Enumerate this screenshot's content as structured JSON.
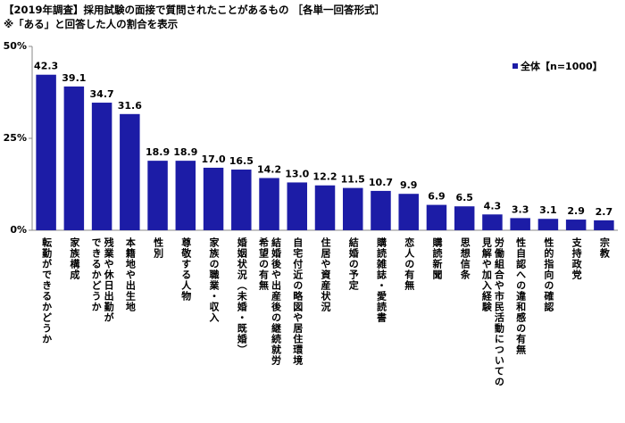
{
  "chart_data": {
    "type": "bar",
    "title": "【2019年調査】採用試験の面接で質問されたことがあるもの ［各単一回答形式］",
    "subtitle": "※「ある」と回答した人の割合を表示",
    "categories": [
      "転勤ができるかどうか",
      "家族構成",
      "残業や休日出勤が\nできるかどうか",
      "本籍地や出生地",
      "性別",
      "尊敬する人物",
      "家族の職業・収入",
      "婚姻状況（未婚・既婚）",
      "結婚後や出産後の継続就労\n希望の有無",
      "自宅付近の略図や居住環境",
      "住居や資産状況",
      "結婚の予定",
      "購読雑誌・愛読書",
      "恋人の有無",
      "購読新聞",
      "思想信条",
      "労働組合や市民活動についての\n見解や加入経験",
      "性自認への違和感の有無",
      "性的指向の確認",
      "支持政党",
      "宗教"
    ],
    "series": [
      {
        "name": "全体【n=1000】",
        "color": "#1c1ca6",
        "values": [
          42.3,
          39.1,
          34.7,
          31.6,
          18.9,
          18.9,
          17.0,
          16.5,
          14.2,
          13.0,
          12.2,
          11.5,
          10.7,
          9.9,
          6.9,
          6.5,
          4.3,
          3.3,
          3.1,
          2.9,
          2.7
        ],
        "value_labels": [
          "42.3",
          "39.1",
          "34.7",
          "31.6",
          "18.9",
          "18.9",
          "17.0",
          "16.5",
          "14.2",
          "13.0",
          "12.2",
          "11.5",
          "10.7",
          "9.9",
          "6.9",
          "6.5",
          "4.3",
          "3.3",
          "3.1",
          "2.9",
          "2.7"
        ]
      }
    ],
    "ylim": [
      0,
      50
    ],
    "yticks": [
      {
        "value": 0,
        "label": "0%"
      },
      {
        "value": 25,
        "label": "25%"
      },
      {
        "value": 50,
        "label": "50%"
      }
    ],
    "grid": false,
    "legend": "top-right"
  }
}
